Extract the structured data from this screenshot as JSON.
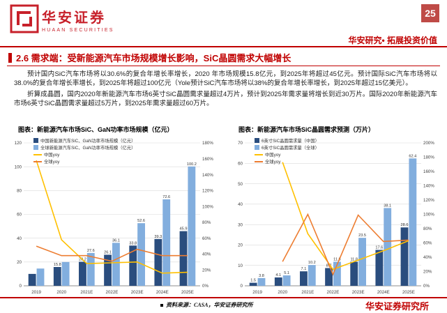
{
  "brand": {
    "name_cn": "华安证券",
    "name_en": "HUAAN SECURITIES",
    "page_number": "25",
    "tagline": "华安研究• 拓展投资价值",
    "accent_color": "#c00000",
    "logo_color": "#c7202a"
  },
  "section": {
    "title": "2.6 需求端：受新能源汽车市场规模增长影响，SiC晶圆需求大幅增长"
  },
  "body": {
    "paragraph1": "预计国内SiC汽车市场将以30.6%的复合年增长率增长，2020 年市场规模15.8亿元，到2025年将超过45亿元。预计国际SiC汽车市场将以38.0%的复合年增长率增长，到2025年将超过100亿元（Yole预计SiC汽车市场将以38%的复合年增长率增长，到2025年超过15亿美元）。",
    "paragraph2": "折算成晶圆，国内2020年新能源汽车市场6英寸SiC晶圆需求量超过4万片，预计到2025年需求量将增长到近30万片。国际2020年新能源汽车市场6英寸SiC晶圆需求量超过5万片，到2025年需求量超过60万片。"
  },
  "chart_data": [
    {
      "type": "bar+line",
      "title": "图表：新能源汽车市场SiC、GaN功率市场规模（亿元）",
      "categories": [
        "2019",
        "2020",
        "2021E",
        "2022E",
        "2023E",
        "2024E",
        "2025E"
      ],
      "bar_series": [
        {
          "name": "中国新能源汽车SiC、GaN功率市场规模（亿元）",
          "color": "#2a4d7e",
          "values": [
            10.0,
            15.8,
            20.2,
            26.1,
            33.8,
            39.3,
            45.9
          ],
          "labels": [
            "",
            "15.8",
            "20.2",
            "26.1",
            "33.8",
            "39.3",
            "45.9"
          ]
        },
        {
          "name": "全球新能源汽车SiC、GaN功率市场规模（亿元）",
          "color": "#82aede",
          "values": [
            14.5,
            20.0,
            27.6,
            36.1,
            52.6,
            72.6,
            100.2
          ],
          "labels": [
            "",
            "",
            "27.6",
            "36.1",
            "52.6",
            "72.6",
            "100.2"
          ]
        }
      ],
      "line_series": [
        {
          "name": "中国yoy",
          "color": "#ffc000",
          "values": [
            1.58,
            0.58,
            0.28,
            0.29,
            0.3,
            0.16,
            0.17
          ]
        },
        {
          "name": "全球yoy",
          "color": "#ed7d31",
          "values": [
            0.5,
            0.38,
            0.38,
            0.31,
            0.46,
            0.38,
            0.38
          ]
        }
      ],
      "y_left": {
        "min": 0,
        "max": 120,
        "step": 20
      },
      "y_right": {
        "min": 0,
        "max": 1.8,
        "step": 0.2,
        "format": "percent"
      },
      "grid": true,
      "legend_position": "top-left"
    },
    {
      "type": "bar+line",
      "title": "图表：新能源汽车市场SiC晶圆需求预测（万片）",
      "categories": [
        "2019",
        "2020",
        "2021E",
        "2022E",
        "2023E",
        "2024E",
        "2025E"
      ],
      "bar_series": [
        {
          "name": "6英寸SiC晶圆需求量（中国）",
          "color": "#2a4d7e",
          "values": [
            1.5,
            4.1,
            7.1,
            8.7,
            11.8,
            17.6,
            28.6
          ],
          "labels": [
            "1.5",
            "4.1",
            "7.1",
            "8.7",
            "11.8",
            "17.6",
            "28.6"
          ]
        },
        {
          "name": "6英寸SiC晶圆需求量（全球）",
          "color": "#82aede",
          "values": [
            3.8,
            5.1,
            10.2,
            11.8,
            23.5,
            38.1,
            62.4
          ],
          "labels": [
            "3.8",
            "5.1",
            "10.2",
            "11.8",
            "23.5",
            "38.1",
            "62.4"
          ]
        }
      ],
      "line_series": [
        {
          "name": "中国yoy",
          "color": "#ffc000",
          "values": [
            null,
            1.73,
            0.73,
            0.23,
            0.36,
            0.49,
            0.63
          ]
        },
        {
          "name": "全球yoy",
          "color": "#ed7d31",
          "values": [
            null,
            0.34,
            1.0,
            0.16,
            0.99,
            0.62,
            0.64
          ]
        }
      ],
      "y_left": {
        "min": 0,
        "max": 70,
        "step": 10
      },
      "y_right": {
        "min": 0,
        "max": 2.0,
        "step": 0.2,
        "format": "percent"
      },
      "grid": true,
      "legend_position": "top-left"
    }
  ],
  "footer": {
    "source": "资料来源：CASA，华安证券研究所",
    "institute": "华安证券研究所"
  }
}
